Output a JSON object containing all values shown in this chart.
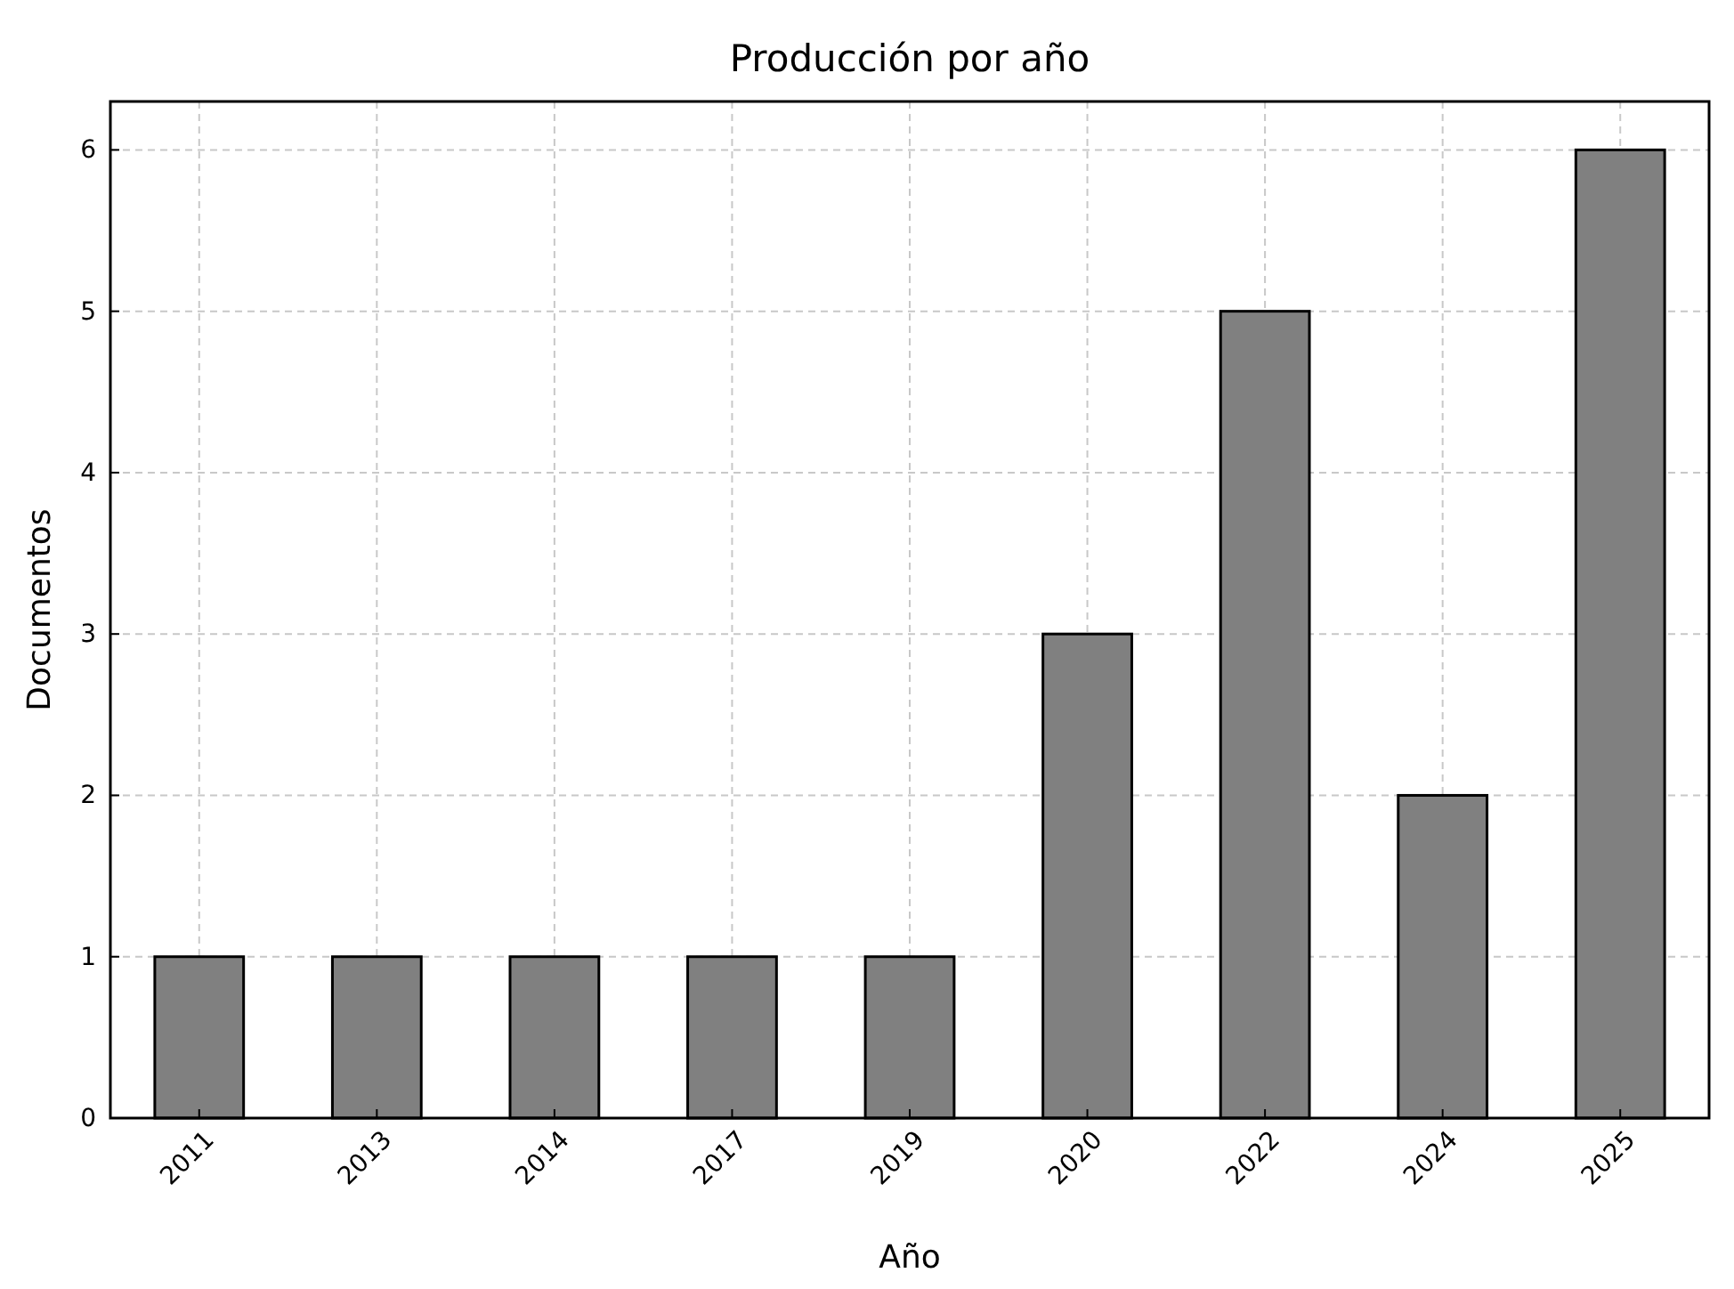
{
  "chart_data": {
    "type": "bar",
    "title": "Producción por año",
    "xlabel": "Año",
    "ylabel": "Documentos",
    "categories": [
      "2011",
      "2013",
      "2014",
      "2017",
      "2019",
      "2020",
      "2022",
      "2024",
      "2025"
    ],
    "values": [
      1,
      1,
      1,
      1,
      1,
      3,
      5,
      2,
      6
    ],
    "color": "#808080",
    "ylim": [
      0,
      6.3
    ],
    "yticks": [
      0,
      1,
      2,
      3,
      4,
      5,
      6
    ],
    "grid": true
  }
}
